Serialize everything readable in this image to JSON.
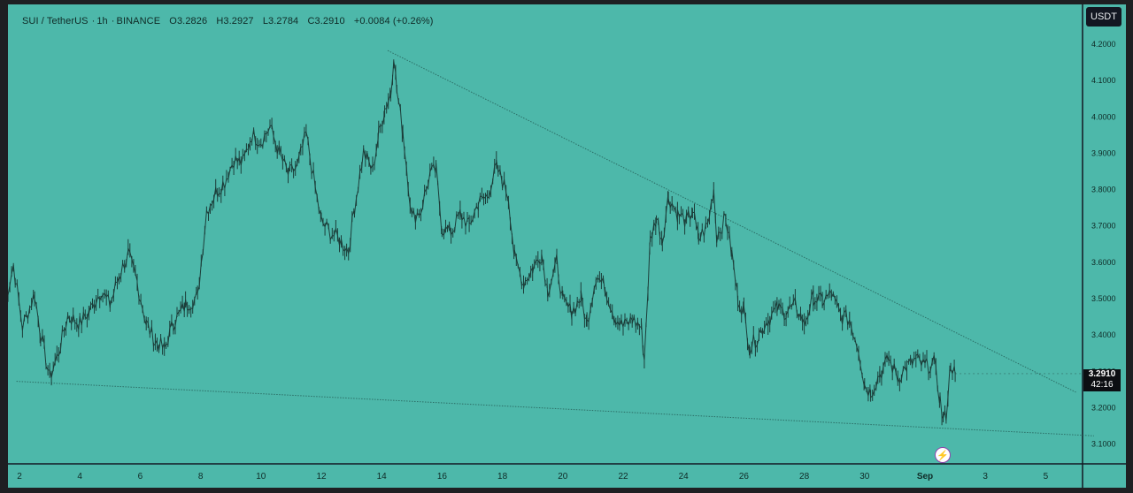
{
  "header": {
    "symbol": "SUI / TetherUS",
    "interval": "1h",
    "exchange": "BINANCE",
    "open": "O3.2826",
    "high": "H3.2927",
    "low": "L3.2784",
    "close": "C3.2910",
    "change": "+0.0084 (+0.26%)"
  },
  "currency_button": "USDT",
  "last_price": {
    "price": "3.2910",
    "countdown": "42:16"
  },
  "event_icon": "lightning-icon",
  "colors": {
    "background": "#4db8aa",
    "candles": "#1c3d39",
    "trendline": "#2c6f67",
    "axis_border": "#131722"
  },
  "chart_data": {
    "type": "line",
    "series_style": "candlestick",
    "title": "",
    "xlabel": "",
    "ylabel": "",
    "y_axis_ticks": [
      "4.2000",
      "4.1000",
      "4.0000",
      "3.9000",
      "3.8000",
      "3.7000",
      "3.6000",
      "3.5000",
      "3.4000",
      "3.3000",
      "3.2000",
      "3.1000"
    ],
    "ylim": [
      3.05,
      4.25
    ],
    "x_axis_ticks": [
      "2",
      "4",
      "6",
      "8",
      "10",
      "12",
      "14",
      "16",
      "18",
      "20",
      "22",
      "24",
      "26",
      "28",
      "30",
      "Sep",
      "3",
      "5"
    ],
    "price_path": [
      {
        "x": 1.5,
        "y": 3.48
      },
      {
        "x": 1.8,
        "y": 3.59
      },
      {
        "x": 2.1,
        "y": 3.42
      },
      {
        "x": 2.5,
        "y": 3.51
      },
      {
        "x": 2.7,
        "y": 3.4
      },
      {
        "x": 3.0,
        "y": 3.28
      },
      {
        "x": 3.3,
        "y": 3.35
      },
      {
        "x": 3.6,
        "y": 3.45
      },
      {
        "x": 4.0,
        "y": 3.43
      },
      {
        "x": 4.3,
        "y": 3.46
      },
      {
        "x": 4.7,
        "y": 3.52
      },
      {
        "x": 5.0,
        "y": 3.48
      },
      {
        "x": 5.3,
        "y": 3.56
      },
      {
        "x": 5.6,
        "y": 3.62
      },
      {
        "x": 5.9,
        "y": 3.54
      },
      {
        "x": 6.2,
        "y": 3.43
      },
      {
        "x": 6.5,
        "y": 3.38
      },
      {
        "x": 6.8,
        "y": 3.36
      },
      {
        "x": 7.1,
        "y": 3.43
      },
      {
        "x": 7.5,
        "y": 3.48
      },
      {
        "x": 7.9,
        "y": 3.5
      },
      {
        "x": 8.2,
        "y": 3.74
      },
      {
        "x": 8.5,
        "y": 3.79
      },
      {
        "x": 8.8,
        "y": 3.82
      },
      {
        "x": 9.1,
        "y": 3.88
      },
      {
        "x": 9.4,
        "y": 3.87
      },
      {
        "x": 9.7,
        "y": 3.95
      },
      {
        "x": 10.0,
        "y": 3.93
      },
      {
        "x": 10.3,
        "y": 3.97
      },
      {
        "x": 10.6,
        "y": 3.9
      },
      {
        "x": 10.9,
        "y": 3.84
      },
      {
        "x": 11.2,
        "y": 3.86
      },
      {
        "x": 11.5,
        "y": 3.95
      },
      {
        "x": 11.8,
        "y": 3.8
      },
      {
        "x": 12.0,
        "y": 3.71
      },
      {
        "x": 12.3,
        "y": 3.68
      },
      {
        "x": 12.6,
        "y": 3.66
      },
      {
        "x": 12.9,
        "y": 3.63
      },
      {
        "x": 13.1,
        "y": 3.75
      },
      {
        "x": 13.4,
        "y": 3.9
      },
      {
        "x": 13.7,
        "y": 3.85
      },
      {
        "x": 13.9,
        "y": 3.95
      },
      {
        "x": 14.1,
        "y": 4.02
      },
      {
        "x": 14.3,
        "y": 4.06
      },
      {
        "x": 14.4,
        "y": 4.17
      },
      {
        "x": 14.5,
        "y": 4.07
      },
      {
        "x": 14.7,
        "y": 3.96
      },
      {
        "x": 15.0,
        "y": 3.72
      },
      {
        "x": 15.3,
        "y": 3.74
      },
      {
        "x": 15.6,
        "y": 3.84
      },
      {
        "x": 15.8,
        "y": 3.85
      },
      {
        "x": 16.0,
        "y": 3.69
      },
      {
        "x": 16.3,
        "y": 3.68
      },
      {
        "x": 16.6,
        "y": 3.73
      },
      {
        "x": 16.9,
        "y": 3.7
      },
      {
        "x": 17.2,
        "y": 3.76
      },
      {
        "x": 17.5,
        "y": 3.78
      },
      {
        "x": 17.8,
        "y": 3.86
      },
      {
        "x": 18.0,
        "y": 3.82
      },
      {
        "x": 18.2,
        "y": 3.78
      },
      {
        "x": 18.4,
        "y": 3.61
      },
      {
        "x": 18.7,
        "y": 3.54
      },
      {
        "x": 19.0,
        "y": 3.58
      },
      {
        "x": 19.3,
        "y": 3.62
      },
      {
        "x": 19.5,
        "y": 3.52
      },
      {
        "x": 19.8,
        "y": 3.6
      },
      {
        "x": 20.0,
        "y": 3.49
      },
      {
        "x": 20.3,
        "y": 3.46
      },
      {
        "x": 20.6,
        "y": 3.5
      },
      {
        "x": 20.8,
        "y": 3.43
      },
      {
        "x": 21.1,
        "y": 3.56
      },
      {
        "x": 21.4,
        "y": 3.53
      },
      {
        "x": 21.7,
        "y": 3.45
      },
      {
        "x": 22.0,
        "y": 3.42
      },
      {
        "x": 22.3,
        "y": 3.44
      },
      {
        "x": 22.6,
        "y": 3.42
      },
      {
        "x": 22.7,
        "y": 3.33
      },
      {
        "x": 22.9,
        "y": 3.66
      },
      {
        "x": 23.1,
        "y": 3.72
      },
      {
        "x": 23.3,
        "y": 3.66
      },
      {
        "x": 23.5,
        "y": 3.78
      },
      {
        "x": 23.8,
        "y": 3.73
      },
      {
        "x": 24.1,
        "y": 3.71
      },
      {
        "x": 24.3,
        "y": 3.74
      },
      {
        "x": 24.5,
        "y": 3.66
      },
      {
        "x": 24.8,
        "y": 3.7
      },
      {
        "x": 25.0,
        "y": 3.8
      },
      {
        "x": 25.1,
        "y": 3.67
      },
      {
        "x": 25.4,
        "y": 3.72
      },
      {
        "x": 25.6,
        "y": 3.62
      },
      {
        "x": 25.8,
        "y": 3.5
      },
      {
        "x": 26.0,
        "y": 3.46
      },
      {
        "x": 26.2,
        "y": 3.36
      },
      {
        "x": 26.5,
        "y": 3.4
      },
      {
        "x": 26.8,
        "y": 3.44
      },
      {
        "x": 27.1,
        "y": 3.47
      },
      {
        "x": 27.4,
        "y": 3.46
      },
      {
        "x": 27.7,
        "y": 3.48
      },
      {
        "x": 28.0,
        "y": 3.43
      },
      {
        "x": 28.3,
        "y": 3.5
      },
      {
        "x": 28.6,
        "y": 3.49
      },
      {
        "x": 28.9,
        "y": 3.51
      },
      {
        "x": 29.2,
        "y": 3.45
      },
      {
        "x": 29.5,
        "y": 3.44
      },
      {
        "x": 29.8,
        "y": 3.36
      },
      {
        "x": 30.0,
        "y": 3.26
      },
      {
        "x": 30.2,
        "y": 3.24
      },
      {
        "x": 30.5,
        "y": 3.29
      },
      {
        "x": 30.8,
        "y": 3.33
      },
      {
        "x": 31.1,
        "y": 3.28
      },
      {
        "x": 31.4,
        "y": 3.31
      },
      {
        "x": 31.7,
        "y": 3.33
      },
      {
        "x": 32.0,
        "y": 3.31
      },
      {
        "x": 32.3,
        "y": 3.32
      },
      {
        "x": 32.5,
        "y": 3.22
      },
      {
        "x": 32.6,
        "y": 3.16
      },
      {
        "x": 32.7,
        "y": 3.18
      },
      {
        "x": 32.85,
        "y": 3.32
      },
      {
        "x": 33.0,
        "y": 3.29
      }
    ],
    "trendlines": [
      {
        "name": "upper",
        "points": [
          {
            "x": 14.2,
            "y": 4.18
          },
          {
            "x": 37.0,
            "y": 3.24
          }
        ]
      },
      {
        "name": "lower",
        "points": [
          {
            "x": 1.9,
            "y": 3.27
          },
          {
            "x": 37.6,
            "y": 3.12
          }
        ]
      }
    ],
    "grid": false,
    "legend": "none"
  }
}
